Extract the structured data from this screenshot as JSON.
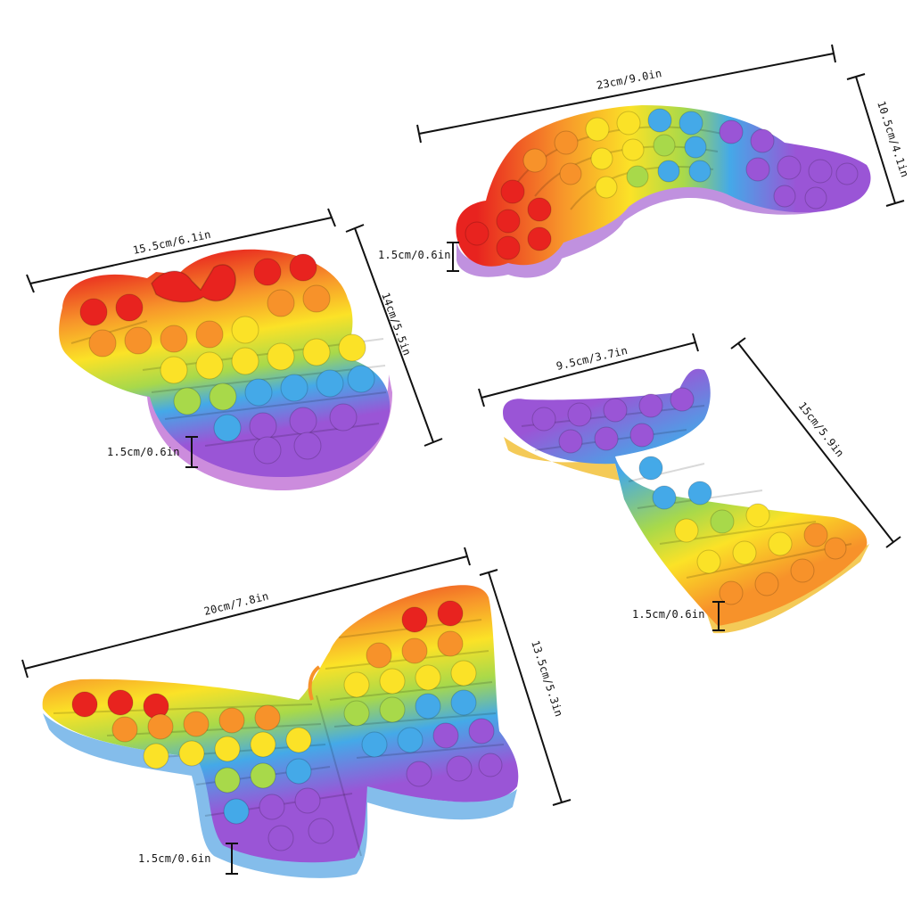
{
  "colors": {
    "red": "#e8231f",
    "orange": "#f7922a",
    "yellow": "#fbe227",
    "green": "#a8d94a",
    "blue": "#44a9e8",
    "purple": "#9a55d6",
    "background": "#ffffff",
    "dimension_line": "#111111"
  },
  "toys": [
    {
      "shape": "mouse-head",
      "width_label": "15.5cm/6.1in",
      "height_label": "14cm/5.5in",
      "thickness_label": "1.5cm/0.6in"
    },
    {
      "shape": "rainbow",
      "width_label": "23cm/9.0in",
      "height_label": "10.5cm/4.1in",
      "thickness_label": "1.5cm/0.6in"
    },
    {
      "shape": "mermaid-tail",
      "width_label": "9.5cm/3.7in",
      "height_label": "15cm/5.9in",
      "thickness_label": "1.5cm/0.6in"
    },
    {
      "shape": "butterfly",
      "width_label": "20cm/7.8in",
      "height_label": "13.5cm/5.3in",
      "thickness_label": "1.5cm/0.6in"
    }
  ]
}
